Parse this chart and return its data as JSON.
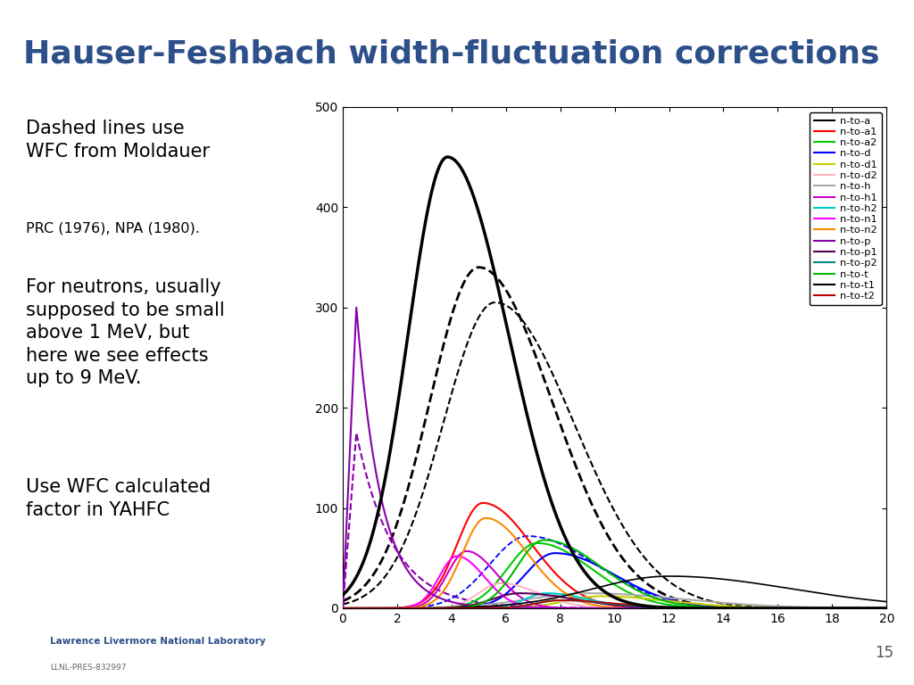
{
  "title": "Hauser-Feshbach width-fluctuation corrections",
  "title_color": "#2D4F8A",
  "title_fontsize": 26,
  "xlim": [
    0,
    20
  ],
  "ylim": [
    0,
    500
  ],
  "xticks": [
    0,
    2,
    4,
    6,
    8,
    10,
    12,
    14,
    16,
    18,
    20
  ],
  "yticks": [
    0,
    100,
    200,
    300,
    400,
    500
  ],
  "footer_text": "Lawrence Livermore National Laboratory",
  "footer_sub": "LLNL-PRES-832997",
  "slide_number": "15",
  "text_para1a": "Dashed lines use\nWFC from Moldauer",
  "text_para1b": "PRC (1976), NPA (1980).",
  "text_para2": "For neutrons, usually\nsupposed to be small\nabove 1 MeV, but\nhere we see effects\nup to 9 MeV.",
  "text_para3": "Use WFC calculated\nfactor in YAHFC",
  "legend_labels": [
    "n-to-a",
    "n-to-a1",
    "n-to-a2",
    "n-to-d",
    "n-to-d1",
    "n-to-d2",
    "n-to-h",
    "n-to-h1",
    "n-to-h2",
    "n-to-n1",
    "n-to-n2",
    "n-to-p",
    "n-to-p1",
    "n-to-p2",
    "n-to-t",
    "n-to-t1",
    "n-to-t2"
  ],
  "legend_colors": [
    "#000000",
    "#FF0000",
    "#00CC00",
    "#0000FF",
    "#CCCC00",
    "#FFB6C1",
    "#AAAAAA",
    "#CC00CC",
    "#00CCCC",
    "#FF00FF",
    "#FF8800",
    "#8800AA",
    "#550055",
    "#008888",
    "#00BB00",
    "#000000",
    "#BB0000"
  ],
  "separator_color": "#3D5A8A",
  "footer_line_color": "#BBBBBB"
}
